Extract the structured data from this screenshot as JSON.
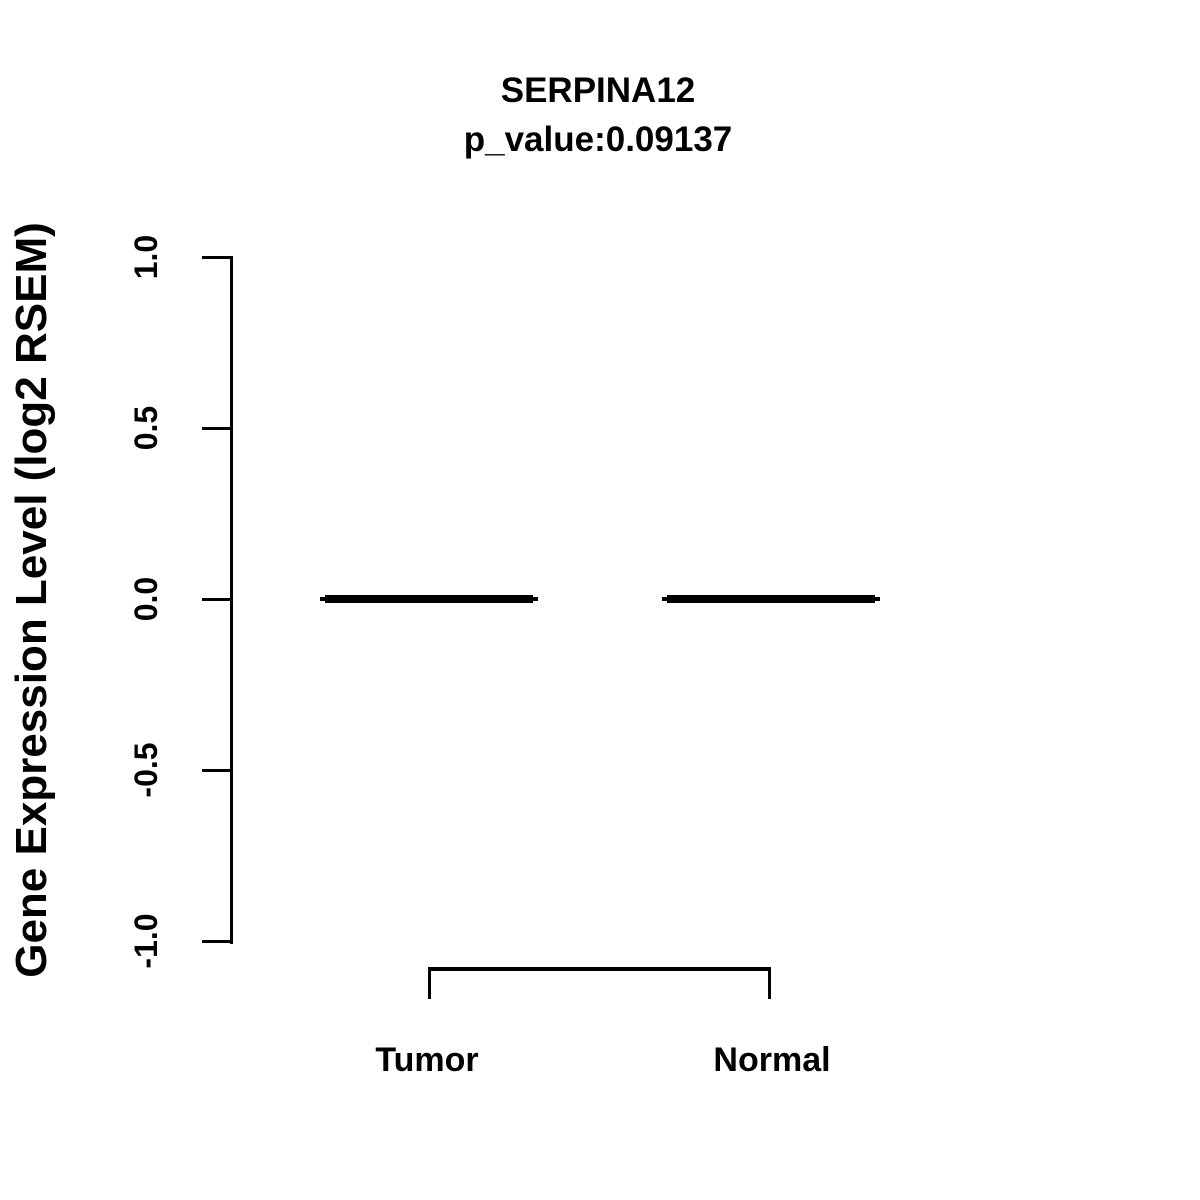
{
  "title": {
    "gene": "SERPINA12",
    "p_value": "p_value:0.09137"
  },
  "y_axis": {
    "label": "Gene Expression Level (log2 RSEM)",
    "ticks": [
      {
        "label": "1.0",
        "value": 1.0
      },
      {
        "label": "0.5",
        "value": 0.5
      },
      {
        "label": "0.0",
        "value": 0.0
      },
      {
        "label": "-0.5",
        "value": -0.5
      },
      {
        "label": "-1.0",
        "value": -1.0
      }
    ]
  },
  "groups": [
    {
      "label": "Tumor",
      "value": 0.0
    },
    {
      "label": "Normal",
      "value": 0.0
    }
  ],
  "colors": {
    "ink": "#000000",
    "background": "#ffffff"
  },
  "chart_data": {
    "type": "boxplot",
    "title": "SERPINA12",
    "subtitle": "p_value:0.09137",
    "p_value": 0.09137,
    "categories": [
      "Tumor",
      "Normal"
    ],
    "series": [
      {
        "name": "Tumor",
        "median": 0.0,
        "q1": 0.0,
        "q3": 0.0,
        "whisker_low": 0.0,
        "whisker_high": 0.0
      },
      {
        "name": "Normal",
        "median": 0.0,
        "q1": 0.0,
        "q3": 0.0,
        "whisker_low": 0.0,
        "whisker_high": 0.0
      }
    ],
    "xlabel": "",
    "ylabel": "Gene Expression Level (log2 RSEM)",
    "ylim": [
      -1.0,
      1.0
    ],
    "yticks": [
      1.0,
      0.5,
      0.0,
      -0.5,
      -1.0
    ],
    "grid": false,
    "legend": "none",
    "annotations": [
      {
        "type": "comparison-bracket",
        "from": "Tumor",
        "to": "Normal"
      }
    ]
  }
}
